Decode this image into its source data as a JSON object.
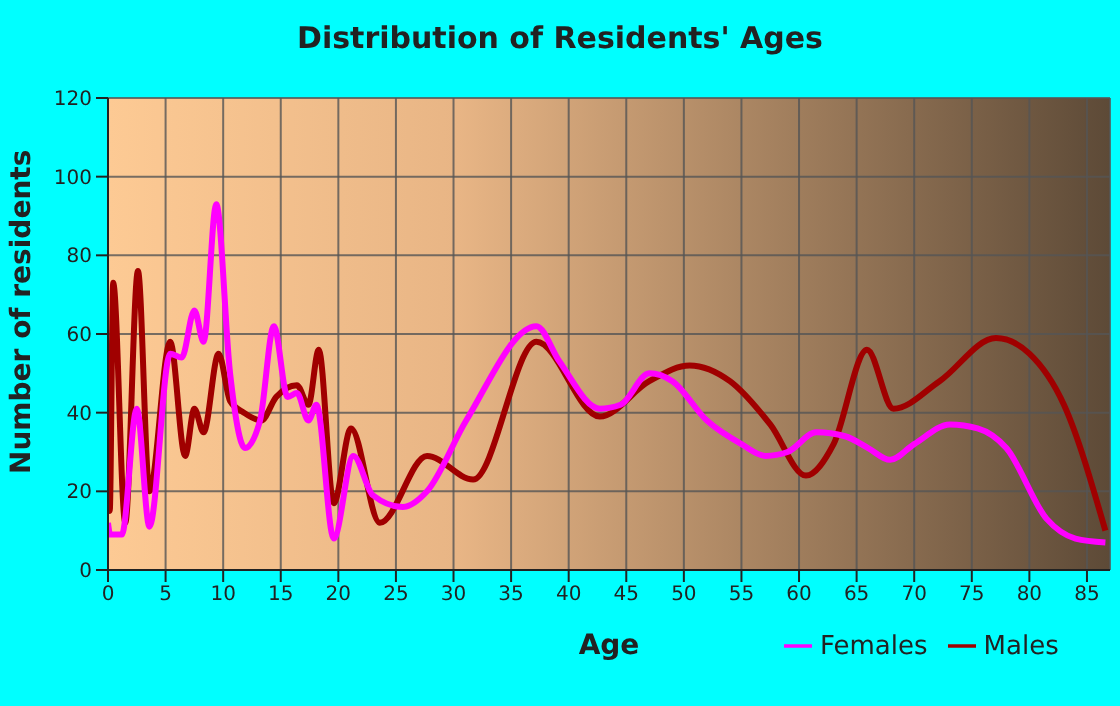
{
  "chart_data": {
    "type": "line",
    "title": "Distribution of Residents' Ages",
    "xlabel": "Age",
    "ylabel": "Number of residents",
    "xlim": [
      0,
      87
    ],
    "xticks": [
      0,
      5,
      10,
      15,
      20,
      25,
      30,
      35,
      40,
      45,
      50,
      55,
      60,
      65,
      70,
      75,
      80,
      85
    ],
    "ylim": [
      0,
      120
    ],
    "yticks": [
      0,
      20,
      40,
      60,
      80,
      100,
      120
    ],
    "grid": true,
    "legend": "bottom right",
    "line_style": "solid",
    "marker": "none",
    "series": [
      {
        "name": "Males",
        "color": "#a00000",
        "x": [
          0,
          0.15,
          0.45,
          1.5,
          2.6,
          3.6,
          5.4,
          6.7,
          7.5,
          8.3,
          9.6,
          10.6,
          11.8,
          13.3,
          14.6,
          16.4,
          17.4,
          18.3,
          19.6,
          21.1,
          23.6,
          27.7,
          31.7,
          37.2,
          42.7,
          47,
          50.5,
          54,
          57.5,
          60.6,
          63,
          65.9,
          68.2,
          72.2,
          77.1,
          80,
          83,
          86.6
        ],
        "values": [
          44,
          15,
          73,
          12,
          76,
          20,
          58,
          29,
          41,
          35,
          55,
          43,
          40,
          38,
          44,
          47,
          42,
          56,
          17,
          36,
          12,
          29,
          23,
          58,
          39,
          48,
          52,
          48,
          37,
          24,
          32,
          56,
          41,
          48,
          59,
          55,
          42,
          10
        ]
      },
      {
        "name": "Females",
        "color": "#ff00ff",
        "x": [
          0,
          0.2,
          1.2,
          2.5,
          3.6,
          5.4,
          6.4,
          7.5,
          8.3,
          9.4,
          10.6,
          11.9,
          13.2,
          14.4,
          15.6,
          16.4,
          17.4,
          18.1,
          19.6,
          21.3,
          23,
          25.6,
          27.7,
          31.1,
          37.2,
          39.2,
          42.7,
          44.5,
          47,
          49,
          52,
          55,
          57.1,
          59,
          61.5,
          64,
          66,
          67.9,
          70,
          73.1,
          75.5,
          78,
          81.5,
          84,
          86.6
        ],
        "values": [
          12,
          9,
          9,
          41,
          11,
          55,
          54,
          66,
          58,
          93,
          50,
          31,
          38,
          62,
          44,
          45,
          38,
          42,
          8,
          29,
          19,
          16,
          20,
          38,
          62,
          53,
          41,
          42,
          50,
          48,
          38,
          32,
          29,
          30,
          35,
          34,
          31,
          28,
          32,
          37,
          36,
          31,
          13,
          8,
          7
        ]
      }
    ]
  }
}
